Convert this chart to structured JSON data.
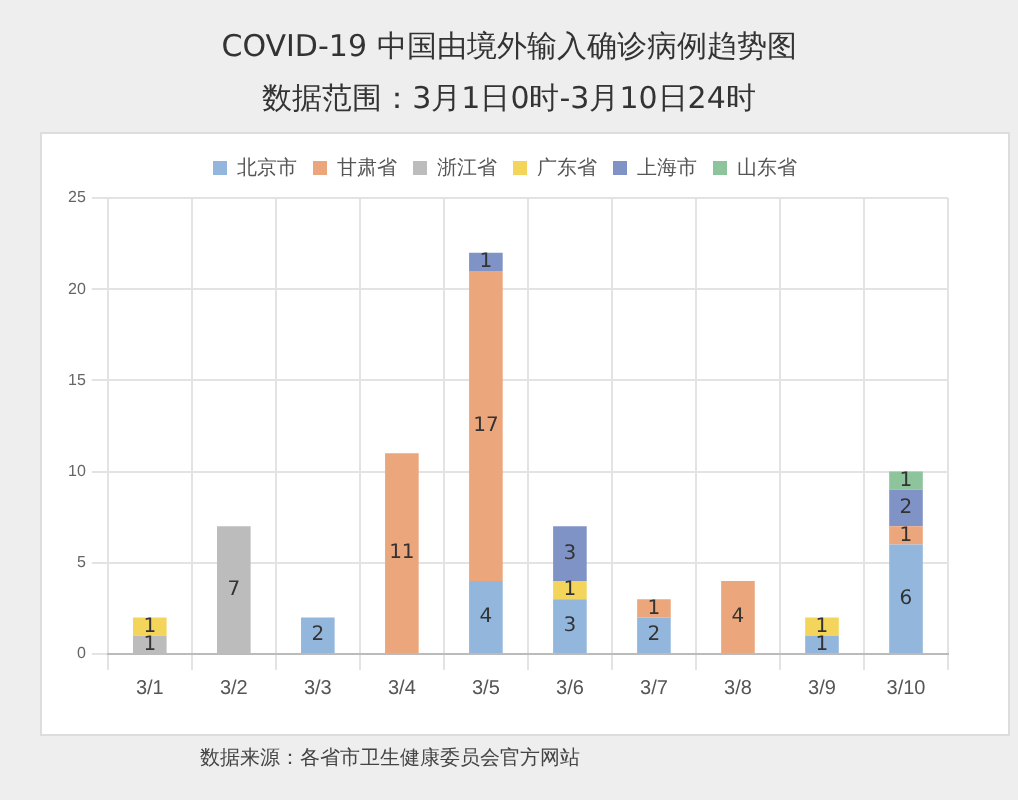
{
  "chart_data": {
    "type": "bar",
    "title": "COVID-19 中国由境外输入确诊病例趋势图",
    "subtitle": "数据范围：3月1日0时-3月10日24时",
    "categories": [
      "3/1",
      "3/2",
      "3/3",
      "3/4",
      "3/5",
      "3/6",
      "3/7",
      "3/8",
      "3/9",
      "3/10"
    ],
    "stacked": true,
    "series": [
      {
        "name": "北京市",
        "color": "#92b6dc",
        "values": [
          null,
          null,
          2,
          null,
          4,
          3,
          2,
          null,
          1,
          6
        ]
      },
      {
        "name": "甘肃省",
        "color": "#eca67b",
        "values": [
          null,
          null,
          null,
          11,
          17,
          null,
          1,
          4,
          null,
          1
        ]
      },
      {
        "name": "浙江省",
        "color": "#bcbcbc",
        "values": [
          1,
          7,
          null,
          null,
          null,
          null,
          null,
          null,
          null,
          null
        ]
      },
      {
        "name": "广东省",
        "color": "#f3d55c",
        "values": [
          1,
          null,
          null,
          null,
          null,
          1,
          null,
          null,
          1,
          null
        ]
      },
      {
        "name": "上海市",
        "color": "#7f93c6",
        "values": [
          null,
          null,
          null,
          null,
          1,
          3,
          null,
          null,
          null,
          2
        ]
      },
      {
        "name": "山东省",
        "color": "#8dc49b",
        "values": [
          null,
          null,
          null,
          null,
          null,
          null,
          null,
          null,
          null,
          1
        ]
      }
    ],
    "ylim": [
      0,
      25
    ],
    "yticks": [
      0,
      5,
      10,
      15,
      20,
      25
    ],
    "grid": true,
    "legend": "top",
    "data_labels": true,
    "annotations": [
      "数据来源：各省市卫生健康委员会官方网站"
    ]
  }
}
